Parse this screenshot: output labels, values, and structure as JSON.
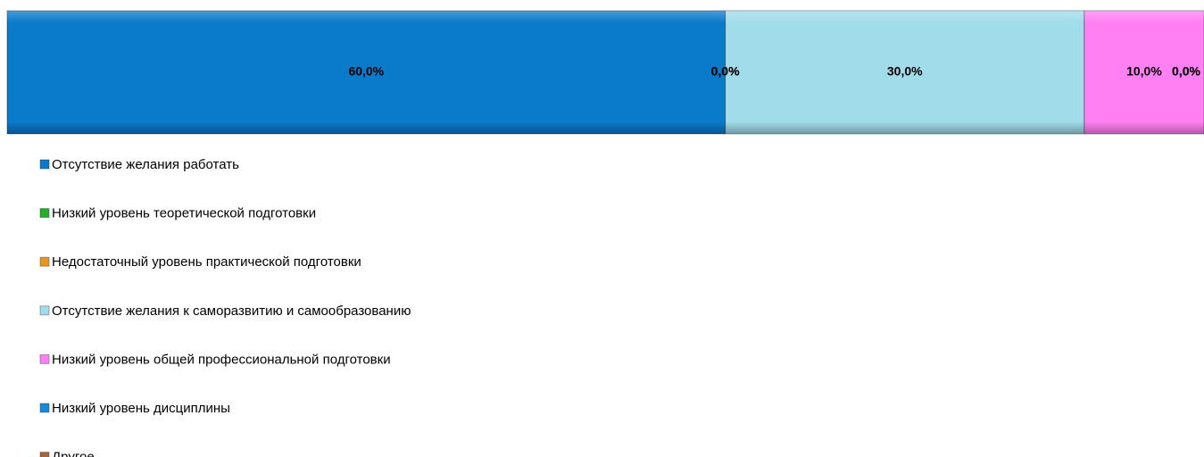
{
  "chart_data": {
    "type": "stacked-bar-horizontal",
    "xlim": [
      0,
      100
    ],
    "series": [
      {
        "name": "Отсутствие желания работать",
        "color": "#0a7acb",
        "values": [
          60
        ],
        "value_labels": [
          "60,0%"
        ]
      },
      {
        "name": "Низкий уровень теоретической подготовки",
        "color": "#22b02a",
        "values": [
          0
        ],
        "value_labels": [
          "0,0%"
        ]
      },
      {
        "name": "Недостаточный уровень практической подготовки",
        "color": "#e8961e",
        "values": [
          0
        ],
        "value_labels": [
          "0,0%"
        ]
      },
      {
        "name": "Отсутствие желания к саморазвитию и самообразованию",
        "color": "#a0dcea",
        "values": [
          30
        ],
        "value_labels": [
          "30,0%"
        ]
      },
      {
        "name": "Низкий уровень общей профессиональной подготовки",
        "color": "#ff80f2",
        "values": [
          10
        ],
        "value_labels": [
          "10,0%"
        ]
      },
      {
        "name": "Низкий уровень дисциплины",
        "color": "#1a8ad8",
        "values": [
          0
        ],
        "value_labels": [
          "0,0%"
        ]
      },
      {
        "name": "Другое",
        "color": "#a8643c",
        "values": [
          0
        ],
        "value_labels": [
          "0,0%"
        ]
      }
    ]
  }
}
